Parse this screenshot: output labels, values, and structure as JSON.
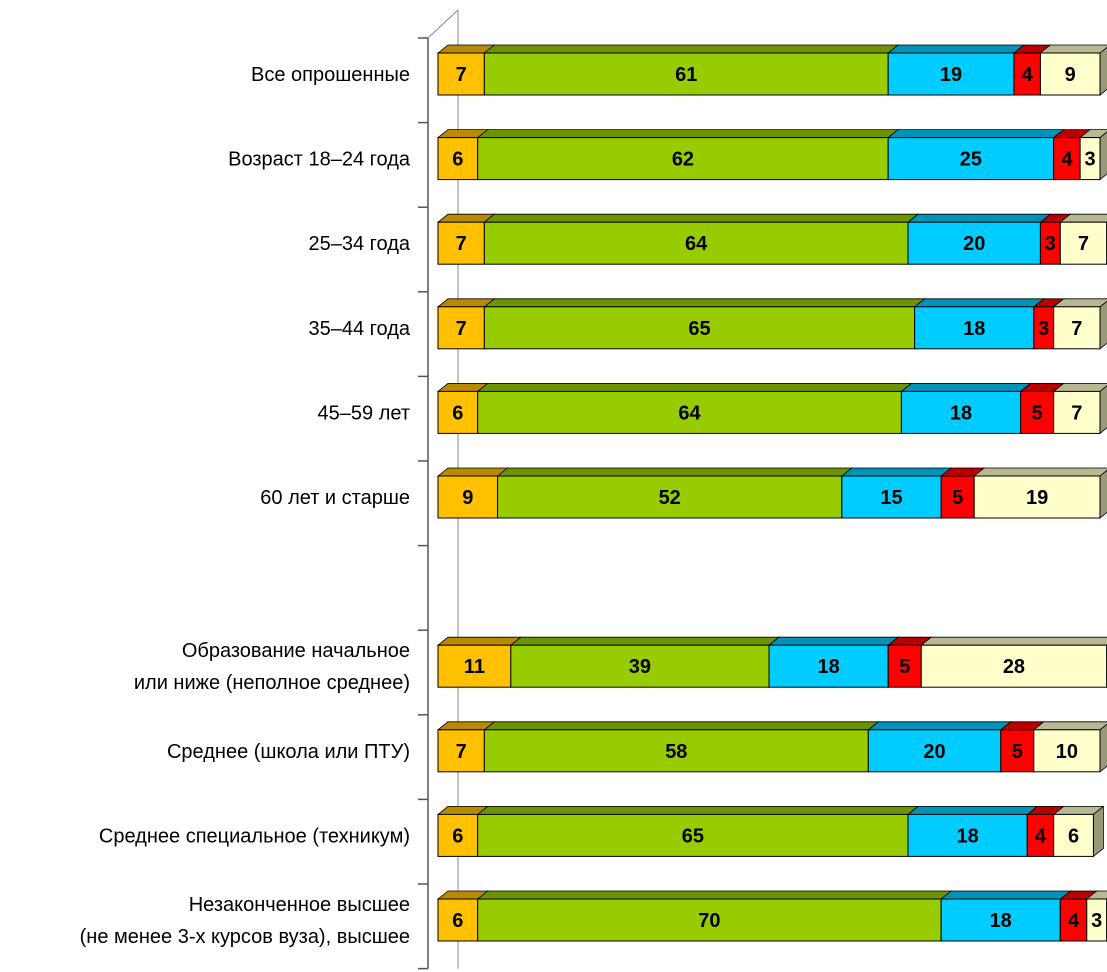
{
  "chart_data": {
    "type": "bar",
    "orientation": "horizontal",
    "stacked": true,
    "percent_stacked": true,
    "three_d": true,
    "legend": "none",
    "grid": false,
    "xlim": [
      0,
      100
    ],
    "categories": [
      [
        "Все опрошенные"
      ],
      [
        "Возраст 18–24 года"
      ],
      [
        "25–34 года"
      ],
      [
        "35–44 года"
      ],
      [
        "45–59 лет"
      ],
      [
        "60 лет и старше"
      ],
      [],
      [
        "Образование начальное",
        "или ниже (неполное среднее)"
      ],
      [
        "Среднее (школа или ПТУ)"
      ],
      [
        "Среднее специальное (техникум)"
      ],
      [
        "Незаконченное высшее",
        "(не менее 3-х курсов вуза), высшее"
      ]
    ],
    "series": [
      {
        "color": "#FFC000",
        "label_color": "#000000",
        "values": [
          7,
          6,
          7,
          7,
          6,
          9,
          null,
          11,
          7,
          6,
          6
        ]
      },
      {
        "color": "#99CC00",
        "label_color": "#000000",
        "values": [
          61,
          62,
          64,
          65,
          64,
          52,
          null,
          39,
          58,
          65,
          70
        ]
      },
      {
        "color": "#00CCFF",
        "label_color": "#000000",
        "values": [
          19,
          25,
          20,
          18,
          18,
          15,
          null,
          18,
          20,
          18,
          18
        ]
      },
      {
        "color": "#FF0000",
        "label_color": "#000000",
        "values": [
          4,
          4,
          3,
          3,
          5,
          5,
          null,
          5,
          5,
          4,
          4
        ]
      },
      {
        "color": "#FFFFCC",
        "label_color": "#000000",
        "values": [
          9,
          3,
          7,
          7,
          7,
          19,
          null,
          28,
          10,
          6,
          3
        ]
      }
    ]
  }
}
